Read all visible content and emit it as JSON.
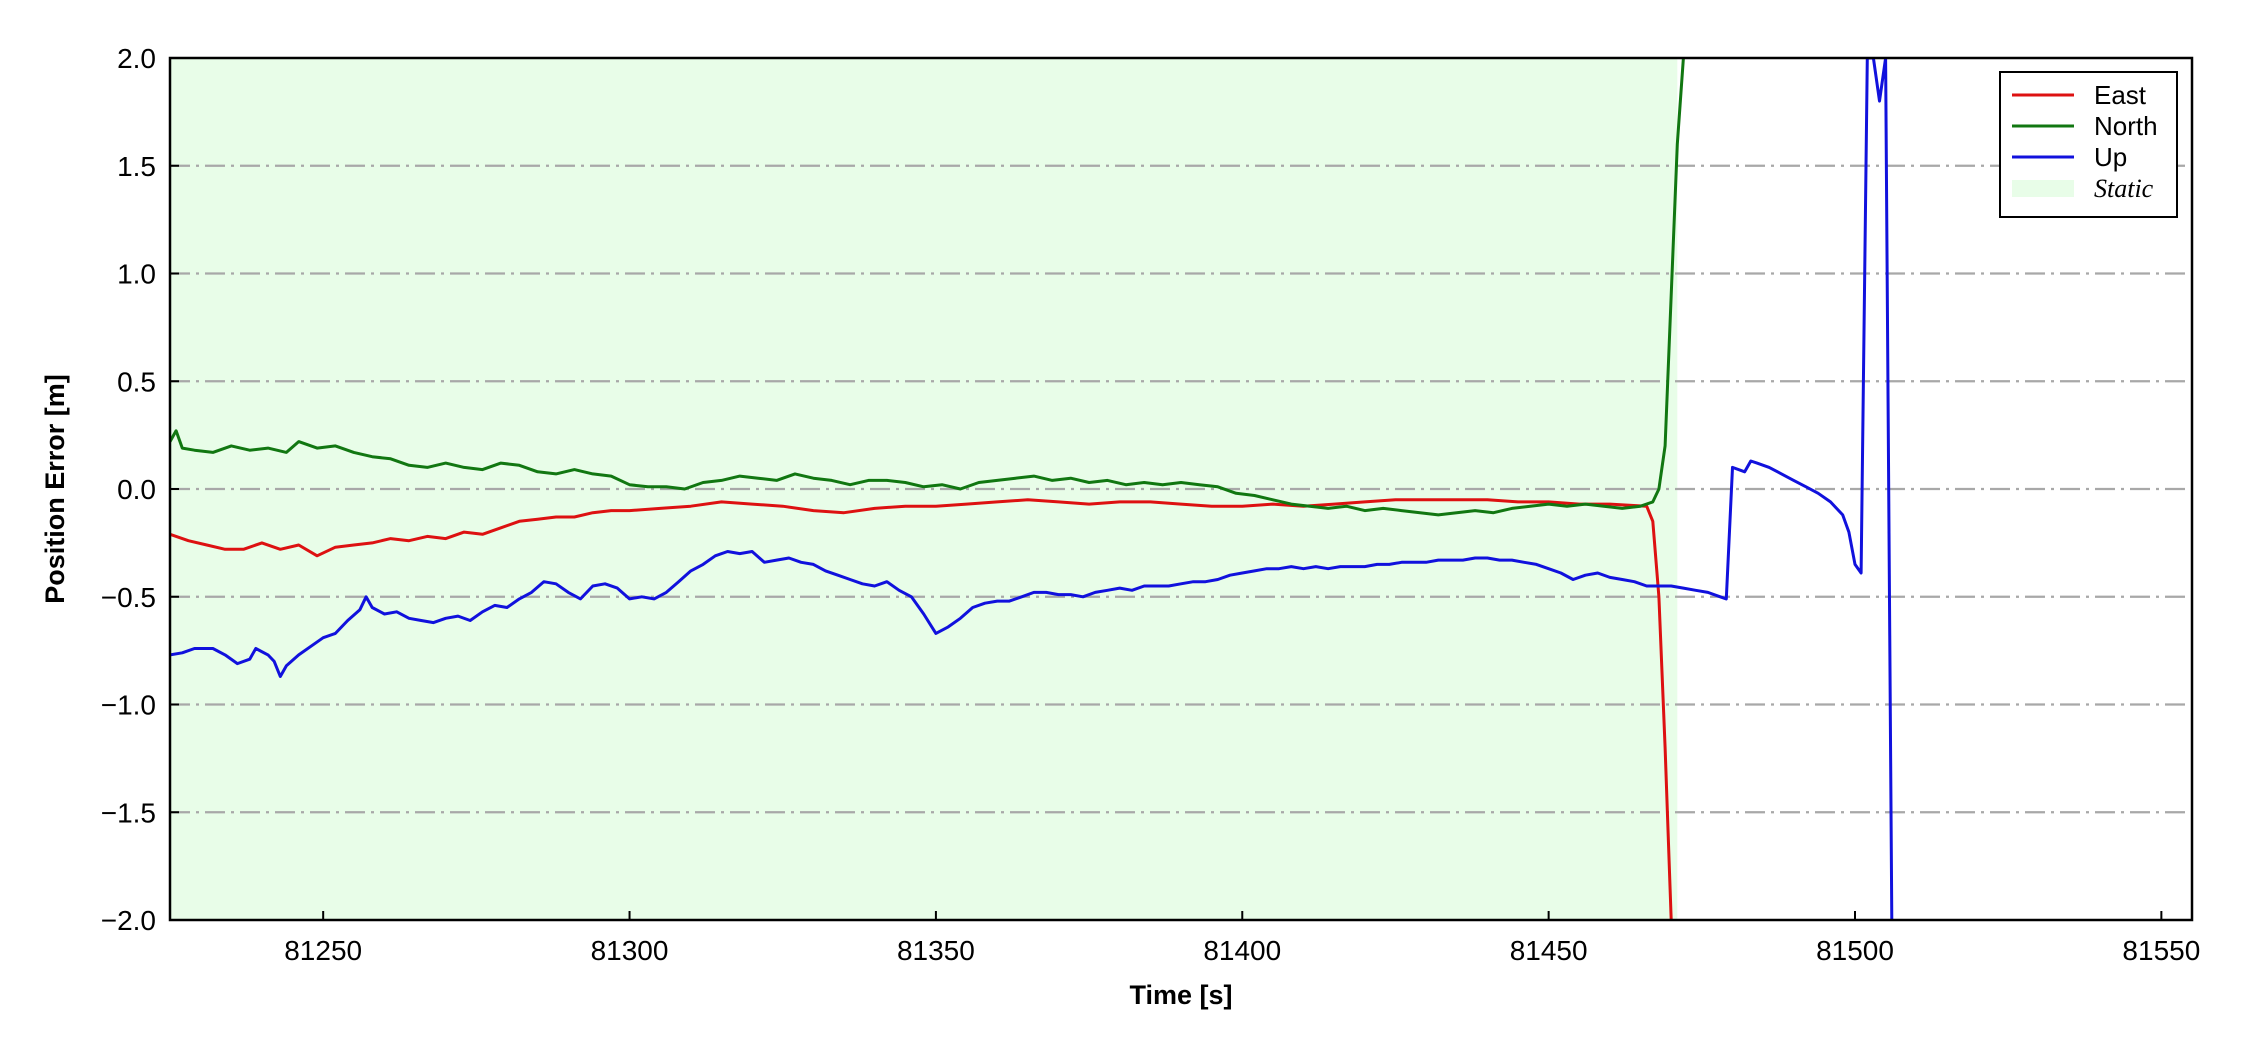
{
  "chart_data": {
    "type": "line",
    "xlabel": "Time [s]",
    "ylabel": "Position Error [m]",
    "xlim": [
      81225,
      81555
    ],
    "ylim": [
      -2.0,
      2.0
    ],
    "xticks": [
      81250,
      81300,
      81350,
      81400,
      81450,
      81500,
      81550
    ],
    "yticks": [
      -2.0,
      -1.5,
      -1.0,
      -0.5,
      0.0,
      0.5,
      1.0,
      1.5,
      2.0
    ],
    "xtick_labels": [
      "81250",
      "81300",
      "81350",
      "81400",
      "81450",
      "81500",
      "81550"
    ],
    "ytick_labels": [
      "−2.0",
      "−1.5",
      "−1.0",
      "−0.5",
      "0.0",
      "0.5",
      "1.0",
      "1.5",
      "2.0"
    ],
    "grid": "horizontal dash-dot",
    "legend_position": "top-right",
    "static_region": {
      "name": "Static",
      "x_start": 81225,
      "x_end": 81471,
      "color": "#e8fde8"
    },
    "series": [
      {
        "name": "East",
        "color": "#dd1111",
        "points": [
          [
            81225,
            -0.21
          ],
          [
            81228,
            -0.24
          ],
          [
            81231,
            -0.26
          ],
          [
            81234,
            -0.28
          ],
          [
            81237,
            -0.28
          ],
          [
            81240,
            -0.25
          ],
          [
            81243,
            -0.28
          ],
          [
            81246,
            -0.26
          ],
          [
            81249,
            -0.31
          ],
          [
            81252,
            -0.27
          ],
          [
            81255,
            -0.26
          ],
          [
            81258,
            -0.25
          ],
          [
            81261,
            -0.23
          ],
          [
            81264,
            -0.24
          ],
          [
            81267,
            -0.22
          ],
          [
            81270,
            -0.23
          ],
          [
            81273,
            -0.2
          ],
          [
            81276,
            -0.21
          ],
          [
            81279,
            -0.18
          ],
          [
            81282,
            -0.15
          ],
          [
            81285,
            -0.14
          ],
          [
            81288,
            -0.13
          ],
          [
            81291,
            -0.13
          ],
          [
            81294,
            -0.11
          ],
          [
            81297,
            -0.1
          ],
          [
            81300,
            -0.1
          ],
          [
            81305,
            -0.09
          ],
          [
            81310,
            -0.08
          ],
          [
            81315,
            -0.06
          ],
          [
            81320,
            -0.07
          ],
          [
            81325,
            -0.08
          ],
          [
            81330,
            -0.1
          ],
          [
            81335,
            -0.11
          ],
          [
            81340,
            -0.09
          ],
          [
            81345,
            -0.08
          ],
          [
            81350,
            -0.08
          ],
          [
            81355,
            -0.07
          ],
          [
            81360,
            -0.06
          ],
          [
            81365,
            -0.05
          ],
          [
            81370,
            -0.06
          ],
          [
            81375,
            -0.07
          ],
          [
            81380,
            -0.06
          ],
          [
            81385,
            -0.06
          ],
          [
            81390,
            -0.07
          ],
          [
            81395,
            -0.08
          ],
          [
            81400,
            -0.08
          ],
          [
            81405,
            -0.07
          ],
          [
            81410,
            -0.08
          ],
          [
            81415,
            -0.07
          ],
          [
            81420,
            -0.06
          ],
          [
            81425,
            -0.05
          ],
          [
            81430,
            -0.05
          ],
          [
            81435,
            -0.05
          ],
          [
            81440,
            -0.05
          ],
          [
            81445,
            -0.06
          ],
          [
            81450,
            -0.06
          ],
          [
            81455,
            -0.07
          ],
          [
            81460,
            -0.07
          ],
          [
            81466,
            -0.08
          ],
          [
            81467,
            -0.15
          ],
          [
            81468,
            -0.5
          ],
          [
            81469,
            -1.2
          ],
          [
            81470,
            -2.0
          ]
        ]
      },
      {
        "name": "North",
        "color": "#117711",
        "points": [
          [
            81225,
            0.22
          ],
          [
            81226,
            0.27
          ],
          [
            81227,
            0.19
          ],
          [
            81229,
            0.18
          ],
          [
            81232,
            0.17
          ],
          [
            81235,
            0.2
          ],
          [
            81238,
            0.18
          ],
          [
            81241,
            0.19
          ],
          [
            81244,
            0.17
          ],
          [
            81246,
            0.22
          ],
          [
            81249,
            0.19
          ],
          [
            81252,
            0.2
          ],
          [
            81255,
            0.17
          ],
          [
            81258,
            0.15
          ],
          [
            81261,
            0.14
          ],
          [
            81264,
            0.11
          ],
          [
            81267,
            0.1
          ],
          [
            81270,
            0.12
          ],
          [
            81273,
            0.1
          ],
          [
            81276,
            0.09
          ],
          [
            81279,
            0.12
          ],
          [
            81282,
            0.11
          ],
          [
            81285,
            0.08
          ],
          [
            81288,
            0.07
          ],
          [
            81291,
            0.09
          ],
          [
            81294,
            0.07
          ],
          [
            81297,
            0.06
          ],
          [
            81300,
            0.02
          ],
          [
            81303,
            0.01
          ],
          [
            81306,
            0.01
          ],
          [
            81309,
            0.0
          ],
          [
            81312,
            0.03
          ],
          [
            81315,
            0.04
          ],
          [
            81318,
            0.06
          ],
          [
            81321,
            0.05
          ],
          [
            81324,
            0.04
          ],
          [
            81327,
            0.07
          ],
          [
            81330,
            0.05
          ],
          [
            81333,
            0.04
          ],
          [
            81336,
            0.02
          ],
          [
            81339,
            0.04
          ],
          [
            81342,
            0.04
          ],
          [
            81345,
            0.03
          ],
          [
            81348,
            0.01
          ],
          [
            81351,
            0.02
          ],
          [
            81354,
            0.0
          ],
          [
            81357,
            0.03
          ],
          [
            81360,
            0.04
          ],
          [
            81363,
            0.05
          ],
          [
            81366,
            0.06
          ],
          [
            81369,
            0.04
          ],
          [
            81372,
            0.05
          ],
          [
            81375,
            0.03
          ],
          [
            81378,
            0.04
          ],
          [
            81381,
            0.02
          ],
          [
            81384,
            0.03
          ],
          [
            81387,
            0.02
          ],
          [
            81390,
            0.03
          ],
          [
            81393,
            0.02
          ],
          [
            81396,
            0.01
          ],
          [
            81399,
            -0.02
          ],
          [
            81402,
            -0.03
          ],
          [
            81405,
            -0.05
          ],
          [
            81408,
            -0.07
          ],
          [
            81411,
            -0.08
          ],
          [
            81414,
            -0.09
          ],
          [
            81417,
            -0.08
          ],
          [
            81420,
            -0.1
          ],
          [
            81423,
            -0.09
          ],
          [
            81426,
            -0.1
          ],
          [
            81429,
            -0.11
          ],
          [
            81432,
            -0.12
          ],
          [
            81435,
            -0.11
          ],
          [
            81438,
            -0.1
          ],
          [
            81441,
            -0.11
          ],
          [
            81444,
            -0.09
          ],
          [
            81447,
            -0.08
          ],
          [
            81450,
            -0.07
          ],
          [
            81453,
            -0.08
          ],
          [
            81456,
            -0.07
          ],
          [
            81459,
            -0.08
          ],
          [
            81462,
            -0.09
          ],
          [
            81465,
            -0.08
          ],
          [
            81467,
            -0.06
          ],
          [
            81468,
            0.0
          ],
          [
            81469,
            0.2
          ],
          [
            81470,
            0.9
          ],
          [
            81471,
            1.6
          ],
          [
            81472,
            2.0
          ]
        ]
      },
      {
        "name": "Up",
        "color": "#1111dd",
        "points": [
          [
            81225,
            -0.77
          ],
          [
            81227,
            -0.76
          ],
          [
            81229,
            -0.74
          ],
          [
            81232,
            -0.74
          ],
          [
            81234,
            -0.77
          ],
          [
            81236,
            -0.81
          ],
          [
            81238,
            -0.79
          ],
          [
            81239,
            -0.74
          ],
          [
            81241,
            -0.77
          ],
          [
            81242,
            -0.8
          ],
          [
            81243,
            -0.87
          ],
          [
            81244,
            -0.82
          ],
          [
            81246,
            -0.77
          ],
          [
            81248,
            -0.73
          ],
          [
            81250,
            -0.69
          ],
          [
            81252,
            -0.67
          ],
          [
            81254,
            -0.61
          ],
          [
            81256,
            -0.56
          ],
          [
            81257,
            -0.5
          ],
          [
            81258,
            -0.55
          ],
          [
            81260,
            -0.58
          ],
          [
            81262,
            -0.57
          ],
          [
            81264,
            -0.6
          ],
          [
            81266,
            -0.61
          ],
          [
            81268,
            -0.62
          ],
          [
            81270,
            -0.6
          ],
          [
            81272,
            -0.59
          ],
          [
            81274,
            -0.61
          ],
          [
            81276,
            -0.57
          ],
          [
            81278,
            -0.54
          ],
          [
            81280,
            -0.55
          ],
          [
            81282,
            -0.51
          ],
          [
            81284,
            -0.48
          ],
          [
            81286,
            -0.43
          ],
          [
            81288,
            -0.44
          ],
          [
            81290,
            -0.48
          ],
          [
            81292,
            -0.51
          ],
          [
            81294,
            -0.45
          ],
          [
            81296,
            -0.44
          ],
          [
            81298,
            -0.46
          ],
          [
            81300,
            -0.51
          ],
          [
            81302,
            -0.5
          ],
          [
            81304,
            -0.51
          ],
          [
            81306,
            -0.48
          ],
          [
            81308,
            -0.43
          ],
          [
            81310,
            -0.38
          ],
          [
            81312,
            -0.35
          ],
          [
            81314,
            -0.31
          ],
          [
            81316,
            -0.29
          ],
          [
            81318,
            -0.3
          ],
          [
            81320,
            -0.29
          ],
          [
            81322,
            -0.34
          ],
          [
            81324,
            -0.33
          ],
          [
            81326,
            -0.32
          ],
          [
            81328,
            -0.34
          ],
          [
            81330,
            -0.35
          ],
          [
            81332,
            -0.38
          ],
          [
            81334,
            -0.4
          ],
          [
            81336,
            -0.42
          ],
          [
            81338,
            -0.44
          ],
          [
            81340,
            -0.45
          ],
          [
            81342,
            -0.43
          ],
          [
            81344,
            -0.47
          ],
          [
            81346,
            -0.5
          ],
          [
            81348,
            -0.58
          ],
          [
            81350,
            -0.67
          ],
          [
            81352,
            -0.64
          ],
          [
            81354,
            -0.6
          ],
          [
            81356,
            -0.55
          ],
          [
            81358,
            -0.53
          ],
          [
            81360,
            -0.52
          ],
          [
            81362,
            -0.52
          ],
          [
            81364,
            -0.5
          ],
          [
            81366,
            -0.48
          ],
          [
            81368,
            -0.48
          ],
          [
            81370,
            -0.49
          ],
          [
            81372,
            -0.49
          ],
          [
            81374,
            -0.5
          ],
          [
            81376,
            -0.48
          ],
          [
            81378,
            -0.47
          ],
          [
            81380,
            -0.46
          ],
          [
            81382,
            -0.47
          ],
          [
            81384,
            -0.45
          ],
          [
            81386,
            -0.45
          ],
          [
            81388,
            -0.45
          ],
          [
            81390,
            -0.44
          ],
          [
            81392,
            -0.43
          ],
          [
            81394,
            -0.43
          ],
          [
            81396,
            -0.42
          ],
          [
            81398,
            -0.4
          ],
          [
            81400,
            -0.39
          ],
          [
            81402,
            -0.38
          ],
          [
            81404,
            -0.37
          ],
          [
            81406,
            -0.37
          ],
          [
            81408,
            -0.36
          ],
          [
            81410,
            -0.37
          ],
          [
            81412,
            -0.36
          ],
          [
            81414,
            -0.37
          ],
          [
            81416,
            -0.36
          ],
          [
            81418,
            -0.36
          ],
          [
            81420,
            -0.36
          ],
          [
            81422,
            -0.35
          ],
          [
            81424,
            -0.35
          ],
          [
            81426,
            -0.34
          ],
          [
            81428,
            -0.34
          ],
          [
            81430,
            -0.34
          ],
          [
            81432,
            -0.33
          ],
          [
            81434,
            -0.33
          ],
          [
            81436,
            -0.33
          ],
          [
            81438,
            -0.32
          ],
          [
            81440,
            -0.32
          ],
          [
            81442,
            -0.33
          ],
          [
            81444,
            -0.33
          ],
          [
            81446,
            -0.34
          ],
          [
            81448,
            -0.35
          ],
          [
            81450,
            -0.37
          ],
          [
            81452,
            -0.39
          ],
          [
            81454,
            -0.42
          ],
          [
            81456,
            -0.4
          ],
          [
            81458,
            -0.39
          ],
          [
            81460,
            -0.41
          ],
          [
            81462,
            -0.42
          ],
          [
            81464,
            -0.43
          ],
          [
            81466,
            -0.45
          ],
          [
            81468,
            -0.45
          ],
          [
            81470,
            -0.45
          ],
          [
            81472,
            -0.46
          ],
          [
            81474,
            -0.47
          ],
          [
            81476,
            -0.48
          ],
          [
            81478,
            -0.5
          ],
          [
            81479,
            -0.51
          ],
          [
            81480,
            0.1
          ],
          [
            81482,
            0.08
          ],
          [
            81483,
            0.13
          ],
          [
            81484,
            0.12
          ],
          [
            81486,
            0.1
          ],
          [
            81488,
            0.07
          ],
          [
            81490,
            0.04
          ],
          [
            81492,
            0.01
          ],
          [
            81494,
            -0.02
          ],
          [
            81496,
            -0.06
          ],
          [
            81498,
            -0.12
          ],
          [
            81499,
            -0.2
          ],
          [
            81500,
            -0.35
          ],
          [
            81501,
            -0.39
          ],
          [
            81502,
            2.0
          ],
          [
            81503,
            2.0
          ],
          [
            81504,
            1.8
          ],
          [
            81505,
            2.0
          ],
          [
            81506,
            -2.0
          ]
        ]
      }
    ]
  }
}
